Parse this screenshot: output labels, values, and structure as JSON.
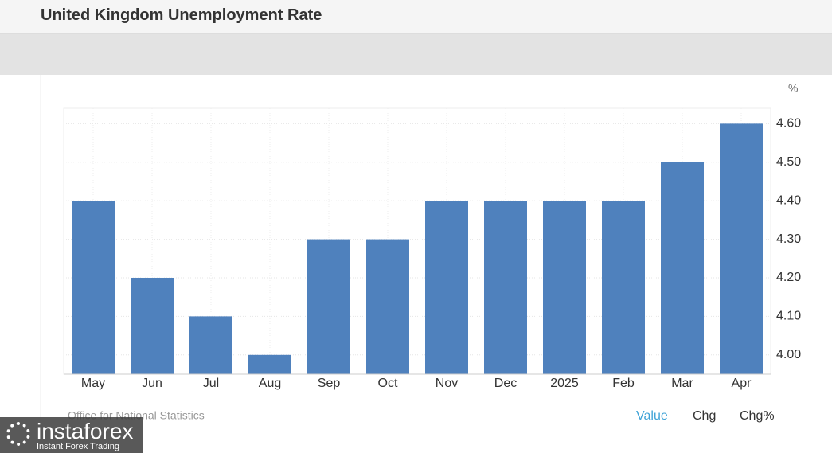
{
  "chart_data": {
    "type": "bar",
    "title": "United Kingdom Unemployment Rate",
    "y_unit": "%",
    "categories": [
      "May",
      "Jun",
      "Jul",
      "Aug",
      "Sep",
      "Oct",
      "Nov",
      "Dec",
      "2025",
      "Feb",
      "Mar",
      "Apr"
    ],
    "values": [
      4.4,
      4.2,
      4.1,
      4.0,
      4.3,
      4.3,
      4.4,
      4.4,
      4.4,
      4.4,
      4.5,
      4.6
    ],
    "color": "#4f81bd",
    "ylim": [
      3.95,
      4.64
    ],
    "yticks": [
      {
        "value": 4.0,
        "label": "4.00"
      },
      {
        "value": 4.1,
        "label": "4.10"
      },
      {
        "value": 4.2,
        "label": "4.20"
      },
      {
        "value": 4.3,
        "label": "4.30"
      },
      {
        "value": 4.4,
        "label": "4.40"
      },
      {
        "value": 4.5,
        "label": "4.50"
      },
      {
        "value": 4.6,
        "label": "4.60"
      }
    ],
    "grid": true,
    "source": "Office for National Statistics"
  },
  "tabs": [
    "Value",
    "Chg",
    "Chg%"
  ],
  "watermark": {
    "brand": "instaforex",
    "tagline": "Instant Forex Trading"
  }
}
